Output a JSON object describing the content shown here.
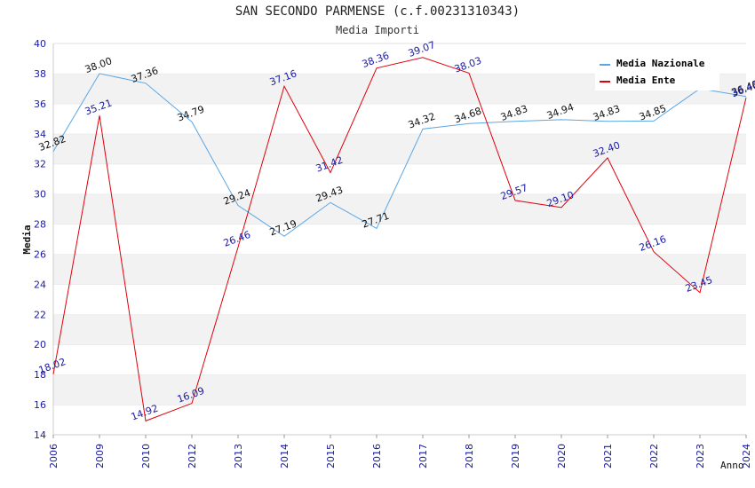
{
  "chart_data": {
    "type": "line",
    "title": "SAN SECONDO PARMENSE (c.f.00231310343)",
    "subtitle": "Media Importi",
    "ylabel": "Media",
    "xlabel": "Anno",
    "categories": [
      "2006",
      "2009",
      "2010",
      "2012",
      "2013",
      "2014",
      "2015",
      "2016",
      "2017",
      "2018",
      "2019",
      "2020",
      "2021",
      "2022",
      "2023",
      "2024"
    ],
    "ylim": [
      14,
      40
    ],
    "yticks": [
      14,
      16,
      18,
      20,
      22,
      24,
      26,
      28,
      30,
      32,
      34,
      36,
      38,
      40
    ],
    "grid": "horizontal bands",
    "legend_position": "top-right",
    "series": [
      {
        "name": "Media Nazionale",
        "color": "#5aa6e6",
        "values": [
          32.82,
          38.0,
          37.36,
          34.79,
          29.24,
          27.19,
          29.43,
          27.71,
          34.32,
          34.68,
          34.83,
          34.94,
          34.83,
          34.85,
          37.0,
          36.48
        ],
        "labels": [
          "32.82",
          "38.00",
          "37.36",
          "34.79",
          "29.24",
          "27.19",
          "29.43",
          "27.71",
          "34.32",
          "34.68",
          "34.83",
          "34.94",
          "34.83",
          "34.85",
          "",
          "36.48"
        ]
      },
      {
        "name": "Media Ente",
        "color": "#e0000a",
        "values": [
          18.02,
          35.21,
          14.92,
          16.09,
          26.46,
          37.16,
          31.42,
          38.36,
          39.07,
          38.03,
          29.57,
          29.1,
          32.4,
          26.16,
          23.45,
          36.4
        ],
        "labels": [
          "18.02",
          "35.21",
          "14.92",
          "16.09",
          "26.46",
          "37.16",
          "31.42",
          "38.36",
          "39.07",
          "38.03",
          "29.57",
          "29.10",
          "32.40",
          "26.16",
          "23.45",
          "36.40"
        ]
      }
    ]
  }
}
